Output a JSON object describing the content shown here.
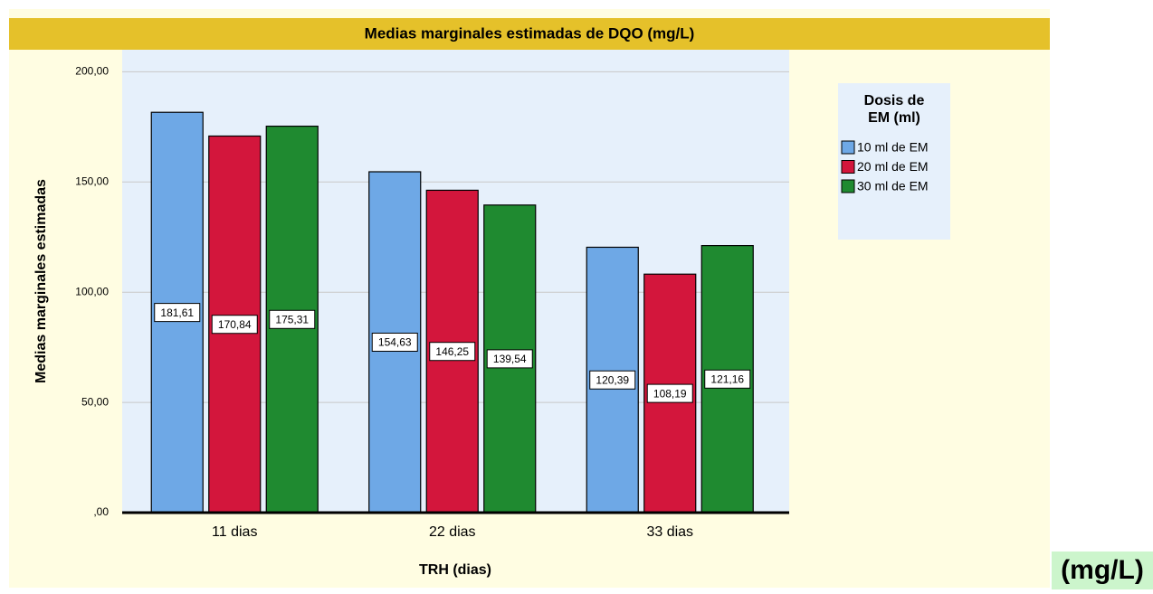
{
  "chart_data": {
    "type": "bar",
    "title": "Medias marginales estimadas de DQO (mg/L)",
    "x_label": "TRH (dias)",
    "y_label": "Medias marginales estimadas",
    "categories": [
      "11 dias",
      "22 dias",
      "33 dias"
    ],
    "legend_title": "Dosis de EM (ml)",
    "series": [
      {
        "name": "10 ml de EM",
        "color": "#6ea8e6",
        "values": [
          181.61,
          154.63,
          120.39
        ],
        "value_labels": [
          "181,61",
          "154,63",
          "120,39"
        ]
      },
      {
        "name": "20 ml de EM",
        "color": "#d3163c",
        "values": [
          170.84,
          146.25,
          108.19
        ],
        "value_labels": [
          "170,84",
          "146,25",
          "108,19"
        ]
      },
      {
        "name": "30 ml de EM",
        "color": "#1f8a30",
        "values": [
          175.31,
          139.54,
          121.16
        ],
        "value_labels": [
          "175,31",
          "139,54",
          "121,16"
        ]
      }
    ],
    "ylim": [
      0,
      210
    ],
    "yticks": [
      {
        "value": 0,
        "label": ",00"
      },
      {
        "value": 50,
        "label": "50,00"
      },
      {
        "value": 100,
        "label": "100,00"
      },
      {
        "value": 150,
        "label": "150,00"
      },
      {
        "value": 200,
        "label": "200,00"
      }
    ],
    "grid": true,
    "annotation": "(mg/L)"
  }
}
